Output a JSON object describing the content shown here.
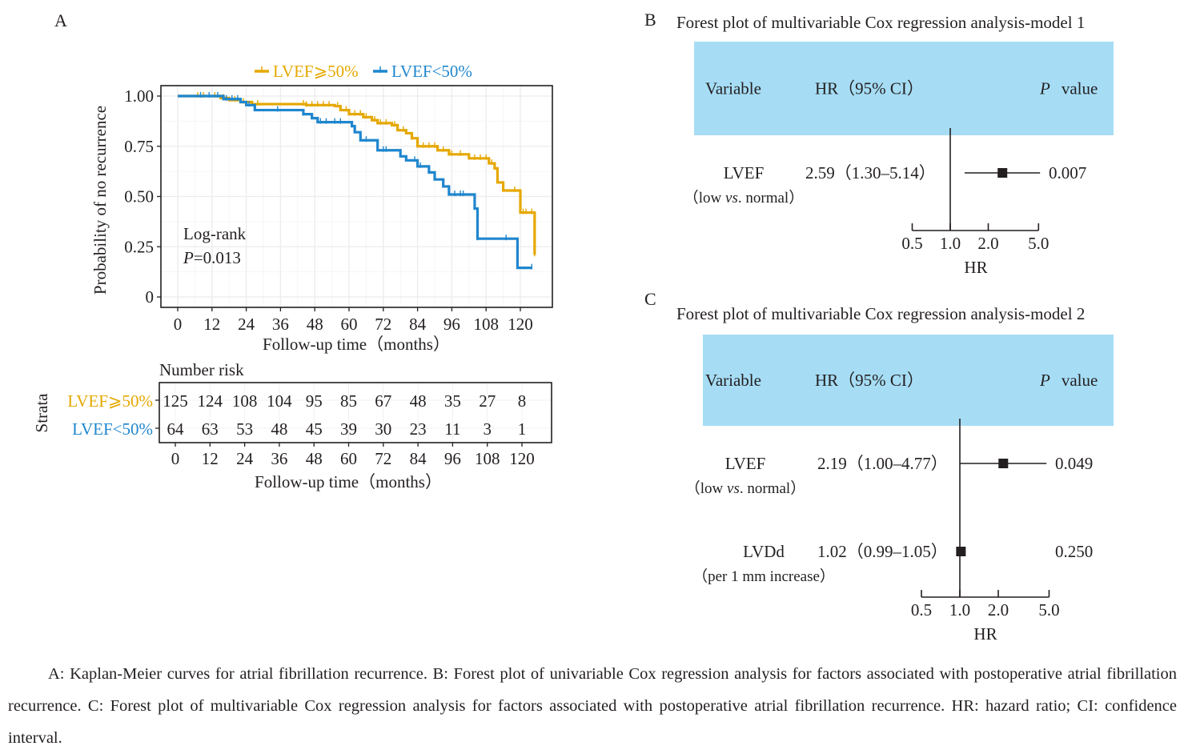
{
  "figure": {
    "caption": "A: Kaplan-Meier curves for atrial fibrillation recurrence. B: Forest plot of univariable Cox regression analysis for factors associated with postoperative atrial fibrillation recurrence. C: Forest plot of multivariable Cox regression analysis for factors associated with postoperative atrial fibrillation recurrence. HR: hazard ratio; CI: confidence interval."
  },
  "colors": {
    "lvef_ge50": "#E5A800",
    "lvef_lt50": "#1F86CE",
    "header_fill": "#A6DDF5",
    "ink": "#231f20",
    "grid": "#ebebeb"
  },
  "chart_data": [
    {
      "panel": "A",
      "type": "line",
      "subtype": "kaplan-meier",
      "title": "",
      "xlabel": "Follow-up time（months）",
      "ylabel": "Probability of no recurrence",
      "xlim": [
        -5,
        133
      ],
      "ylim": [
        -0.05,
        1.05
      ],
      "xticks": [
        0,
        12,
        24,
        36,
        48,
        60,
        72,
        84,
        96,
        108,
        120
      ],
      "yticks": [
        0,
        0.25,
        0.5,
        0.75,
        1.0
      ],
      "ytick_labels": [
        "0",
        "0.25",
        "0.50",
        "0.75",
        "1.00"
      ],
      "grid": true,
      "legend": {
        "placement": "top",
        "entries": [
          "LVEF⩾50%",
          "LVEF<50%"
        ]
      },
      "annotation": {
        "line1": "Log-rank",
        "p_label": "P",
        "p_value": "=0.013"
      },
      "series": [
        {
          "name": "LVEF⩾50%",
          "color_key": "lvef_ge50",
          "steps": [
            [
              0,
              1.0
            ],
            [
              15,
              0.99
            ],
            [
              18,
              0.98
            ],
            [
              22,
              0.97
            ],
            [
              26,
              0.96
            ],
            [
              45,
              0.955
            ],
            [
              55,
              0.95
            ],
            [
              57,
              0.93
            ],
            [
              60,
              0.91
            ],
            [
              65,
              0.895
            ],
            [
              68,
              0.88
            ],
            [
              70,
              0.865
            ],
            [
              75,
              0.855
            ],
            [
              77,
              0.83
            ],
            [
              80,
              0.815
            ],
            [
              82,
              0.79
            ],
            [
              84,
              0.75
            ],
            [
              91,
              0.73
            ],
            [
              95,
              0.71
            ],
            [
              102,
              0.69
            ],
            [
              109,
              0.665
            ],
            [
              111,
              0.64
            ],
            [
              112,
              0.57
            ],
            [
              114,
              0.53
            ],
            [
              120,
              0.42
            ],
            [
              125,
              0.21
            ]
          ],
          "censors": [
            7,
            9,
            13,
            16,
            20,
            23,
            28,
            44,
            45,
            47,
            49,
            51,
            53,
            56,
            59,
            62,
            64,
            66,
            69,
            71,
            73,
            76,
            79,
            82,
            86,
            88,
            90,
            93,
            96,
            99,
            104,
            106,
            108,
            110,
            118,
            121,
            122,
            124,
            125
          ]
        },
        {
          "name": "LVEF<50%",
          "color_key": "lvef_lt50",
          "steps": [
            [
              0,
              1.0
            ],
            [
              16,
              0.985
            ],
            [
              22,
              0.97
            ],
            [
              24,
              0.955
            ],
            [
              27,
              0.93
            ],
            [
              44,
              0.91
            ],
            [
              47,
              0.89
            ],
            [
              49,
              0.87
            ],
            [
              61,
              0.85
            ],
            [
              62,
              0.82
            ],
            [
              64,
              0.78
            ],
            [
              70,
              0.73
            ],
            [
              78,
              0.7
            ],
            [
              80,
              0.68
            ],
            [
              84,
              0.65
            ],
            [
              88,
              0.62
            ],
            [
              90,
              0.585
            ],
            [
              93,
              0.55
            ],
            [
              95,
              0.51
            ],
            [
              104,
              0.44
            ],
            [
              105,
              0.29
            ],
            [
              119,
              0.145
            ],
            [
              124,
              0.145
            ]
          ],
          "censors": [
            8,
            11,
            14,
            17,
            19,
            21,
            25,
            35,
            44,
            50,
            52,
            55,
            57,
            66,
            72,
            73,
            83,
            85,
            97,
            99,
            100,
            105,
            115,
            124
          ]
        }
      ],
      "risk_table": {
        "title": "Number risk",
        "strata_label": "Strata",
        "xlabel": "Follow-up time（months）",
        "times": [
          0,
          12,
          24,
          36,
          48,
          60,
          72,
          84,
          96,
          108,
          120
        ],
        "rows": [
          {
            "label": "LVEF⩾50%",
            "color_key": "lvef_ge50",
            "values": [
              125,
              124,
              108,
              104,
              95,
              85,
              67,
              48,
              35,
              27,
              8
            ]
          },
          {
            "label": "LVEF<50%",
            "color_key": "lvef_lt50",
            "values": [
              64,
              63,
              53,
              48,
              45,
              39,
              30,
              23,
              11,
              3,
              1
            ]
          }
        ]
      }
    },
    {
      "panel": "B",
      "type": "forest",
      "title": "Forest plot of multivariable Cox regression analysis-model 1",
      "header": {
        "variable": "Variable",
        "hr": "HR（95% CI）",
        "p_italic": "P",
        "p_rest": "value"
      },
      "xlabel": "HR",
      "xscale": "log",
      "xticks": [
        0.5,
        1.0,
        2.0,
        5.0
      ],
      "xtick_labels": [
        "0.5",
        "1.0",
        "2.0",
        "5.0"
      ],
      "reference": 1.0,
      "rows": [
        {
          "name": "LVEF",
          "sub_pre": "（low ",
          "sub_it": "vs",
          "sub_post": ". normal）",
          "hr_text": "2.59（1.30–5.14）",
          "hr": 2.59,
          "lo": 1.3,
          "hi": 5.14,
          "p": "0.007"
        }
      ]
    },
    {
      "panel": "C",
      "type": "forest",
      "title": "Forest plot of multivariable Cox regression analysis-model 2",
      "header": {
        "variable": "Variable",
        "hr": "HR（95% CI）",
        "p_italic": "P",
        "p_rest": "value"
      },
      "xlabel": "HR",
      "xscale": "log",
      "xticks": [
        0.5,
        1.0,
        2.0,
        5.0
      ],
      "xtick_labels": [
        "0.5",
        "1.0",
        "2.0",
        "5.0"
      ],
      "reference": 1.0,
      "rows": [
        {
          "name": "LVEF",
          "sub_pre": "（low ",
          "sub_it": "vs",
          "sub_post": ". normal）",
          "hr_text": "2.19（1.00–4.77）",
          "hr": 2.19,
          "lo": 1.0,
          "hi": 4.77,
          "p": "0.049"
        },
        {
          "name": "LVDd",
          "sub_pre": "（per 1 mm increase）",
          "sub_it": "",
          "sub_post": "",
          "hr_text": "1.02（0.99–1.05）",
          "hr": 1.02,
          "lo": 0.99,
          "hi": 1.05,
          "p": "0.250"
        }
      ]
    }
  ]
}
